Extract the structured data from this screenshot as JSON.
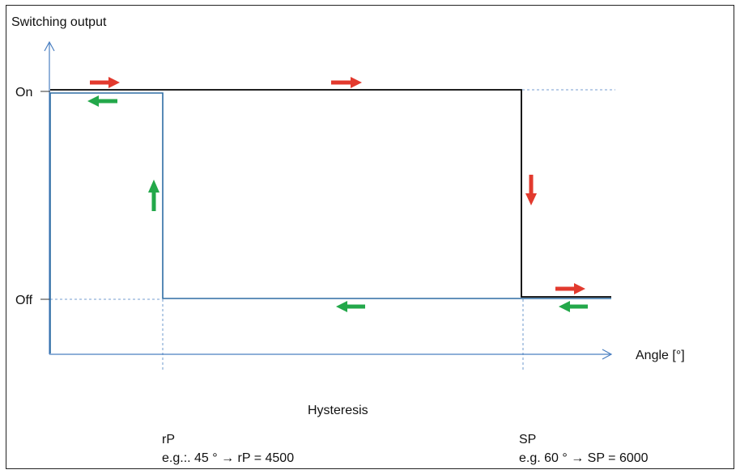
{
  "diagram": {
    "title": "Switching output",
    "y_labels": {
      "on": "On",
      "off": "Off"
    },
    "x_label": "Angle [°]",
    "hysteresis_label": "Hysteresis",
    "rp": {
      "name": "rP",
      "example": "e.g.:. 45 ° → rP = 4500"
    },
    "sp": {
      "name": "SP",
      "example": "e.g. 60 ° → SP = 6000"
    },
    "colors": {
      "axis": "#4a7fc1",
      "rising_path": "#000000",
      "falling_path": "#2e6da4",
      "arrow_increasing": "#e23a2e",
      "arrow_decreasing": "#23a84a"
    }
  }
}
